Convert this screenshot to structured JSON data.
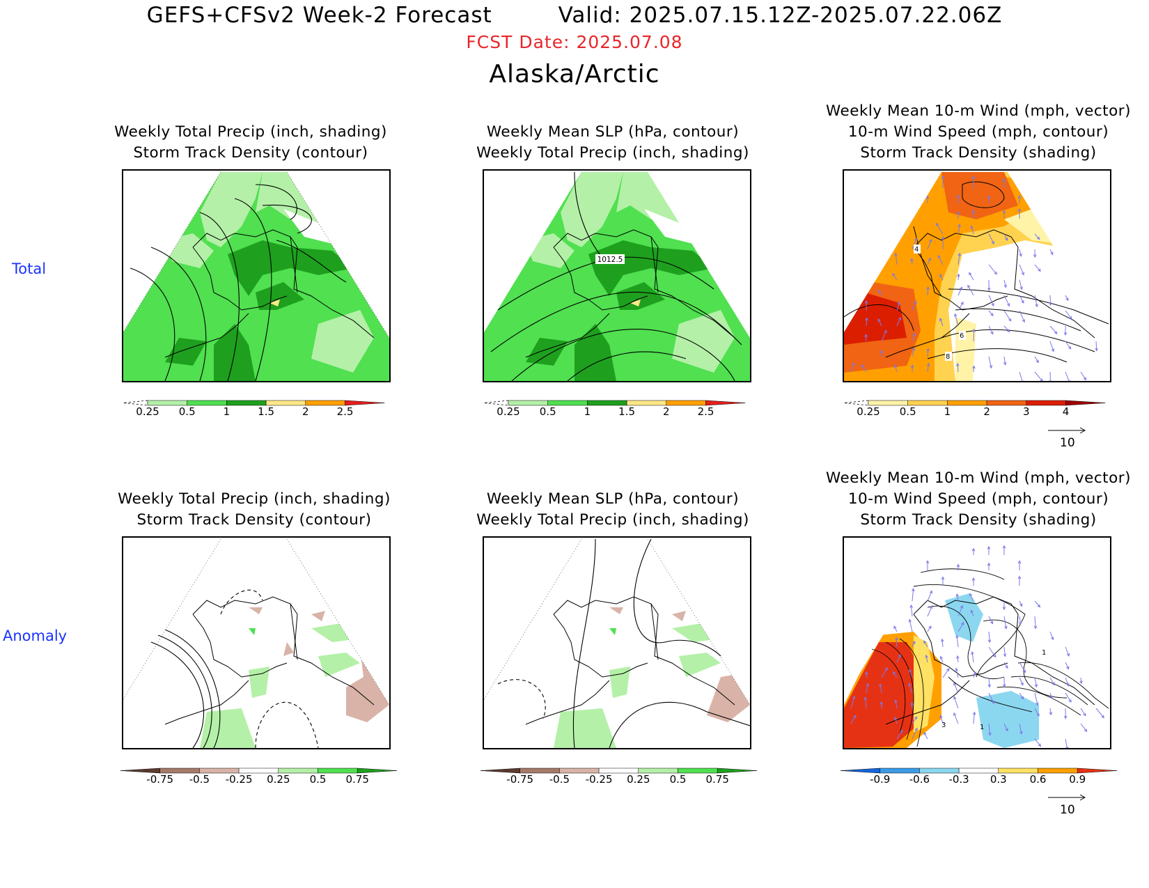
{
  "header": {
    "title_left": "GEFS+CFSv2 Week-2 Forecast",
    "title_right": "Valid: 2025.07.15.12Z-2025.07.22.06Z",
    "fcst_date": "FCST Date: 2025.07.08",
    "region": "Alaska/Arctic"
  },
  "row_labels": {
    "total": "Total",
    "anomaly": "Anomaly"
  },
  "panels": {
    "total_precip": {
      "line1": "Weekly Total Precip (inch, shading)",
      "line2": "Storm Track Density (contour)"
    },
    "total_slp": {
      "line1": "Weekly Mean SLP (hPa, contour)",
      "line2": "Weekly Total Precip (inch, shading)",
      "contour_label": "1012.5"
    },
    "total_wind": {
      "line1": "Weekly Mean 10-m Wind (mph, vector)",
      "line2": "10-m Wind Speed (mph, contour)",
      "line3": "Storm Track Density (shading)",
      "contour_labels": [
        "4",
        "6",
        "8"
      ]
    },
    "anom_precip": {
      "line1": "Weekly Total Precip (inch, shading)",
      "line2": "Storm Track Density (contour)"
    },
    "anom_slp": {
      "line1": "Weekly Mean SLP (hPa, contour)",
      "line2": "Weekly Total Precip (inch, shading)"
    },
    "anom_wind": {
      "line1": "Weekly Mean 10-m Wind (mph, vector)",
      "line2": "10-m Wind Speed (mph, contour)",
      "line3": "Storm Track Density (shading)",
      "contour_labels": [
        "1",
        "3",
        "1"
      ]
    }
  },
  "colorbars": {
    "precip_total": {
      "labels": [
        "0.25",
        "0.5",
        "1",
        "1.5",
        "2",
        "2.5"
      ],
      "colors": [
        "#ffffff",
        "#b4f0a8",
        "#50e050",
        "#1ea01e",
        "#fee787",
        "#ffa000",
        "#e61e1e"
      ]
    },
    "storm_total": {
      "labels": [
        "0.25",
        "0.5",
        "1",
        "2",
        "3",
        "4"
      ],
      "colors": [
        "#ffffff",
        "#fff3a8",
        "#ffd250",
        "#ffa000",
        "#f06414",
        "#dc1e00",
        "#a00000"
      ]
    },
    "precip_anom": {
      "labels": [
        "-0.75",
        "-0.5",
        "-0.25",
        "0.25",
        "0.5",
        "0.75"
      ],
      "colors": [
        "#5c3a2e",
        "#a67a6a",
        "#d9b3a8",
        "#ffffff",
        "#b4f0a8",
        "#50e050",
        "#1ea01e"
      ]
    },
    "storm_anom": {
      "labels": [
        "-0.9",
        "-0.6",
        "-0.3",
        "0.3",
        "0.6",
        "0.9"
      ],
      "colors": [
        "#1464dc",
        "#3c9be6",
        "#8cd7f0",
        "#ffffff",
        "#ffe164",
        "#ffa000",
        "#e63214"
      ]
    }
  },
  "vector_reference": {
    "label": "10"
  },
  "colors": {
    "forecast_date": "#e8262a",
    "row_label": "#1a33ff",
    "wind_vector": "#7b78e8"
  }
}
